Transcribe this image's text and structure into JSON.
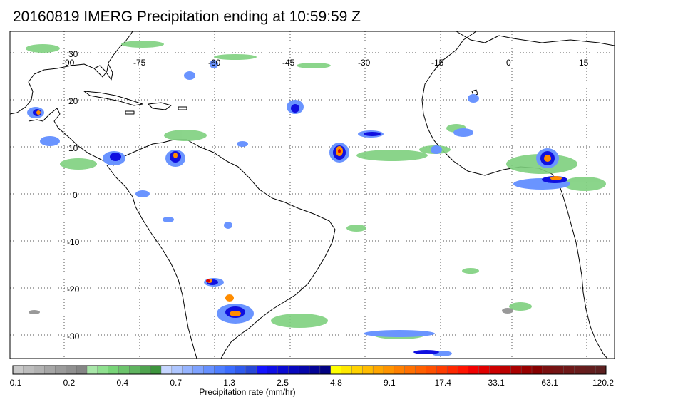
{
  "title": "20160819 IMERG Precipitation ending at 10:59:59 Z",
  "map": {
    "lon_labels": [
      "-90",
      "-75",
      "-60",
      "-45",
      "-30",
      "-15",
      "0",
      "15"
    ],
    "lat_labels": [
      "30",
      "20",
      "10",
      "0",
      "-10",
      "-20",
      "-30"
    ],
    "lon_range": [
      -92,
      20
    ],
    "lat_range": [
      -37,
      33
    ],
    "gridlines": "dotted",
    "land_outline_color": "#000000"
  },
  "colorbar": {
    "label": "Precipitation rate (mm/hr)",
    "tick_labels": [
      "0.1",
      "0.2",
      "0.4",
      "0.7",
      "1.3",
      "2.5",
      "4.8",
      "9.1",
      "17.4",
      "33.1",
      "63.1",
      "120.2"
    ],
    "colors": [
      "#c8c8c8",
      "#bdbdbd",
      "#b2b2b2",
      "#a6a6a6",
      "#9b9b9b",
      "#909090",
      "#858585",
      "#a8e6a8",
      "#8fe08f",
      "#78d478",
      "#6cc46c",
      "#5fb45f",
      "#4fa44f",
      "#3d943d",
      "#c6d6ff",
      "#aec6ff",
      "#96b4ff",
      "#7ea2ff",
      "#6690ff",
      "#4e7eff",
      "#3b6cff",
      "#2f5aee",
      "#2848d8",
      "#1414ff",
      "#0f0fe6",
      "#0a0ad2",
      "#0707be",
      "#0505aa",
      "#030396",
      "#020282",
      "#ffff00",
      "#ffe800",
      "#ffd200",
      "#ffbc00",
      "#ffa600",
      "#ff9400",
      "#ff8000",
      "#ff7000",
      "#ff6000",
      "#ff5000",
      "#ff3c00",
      "#ff2800",
      "#ff1400",
      "#f20000",
      "#e00000",
      "#ce0000",
      "#bc0000",
      "#aa0000",
      "#980000",
      "#860000",
      "#7a1010",
      "#741414",
      "#6e1818",
      "#681c1c",
      "#621e1e",
      "#5c2020"
    ]
  }
}
